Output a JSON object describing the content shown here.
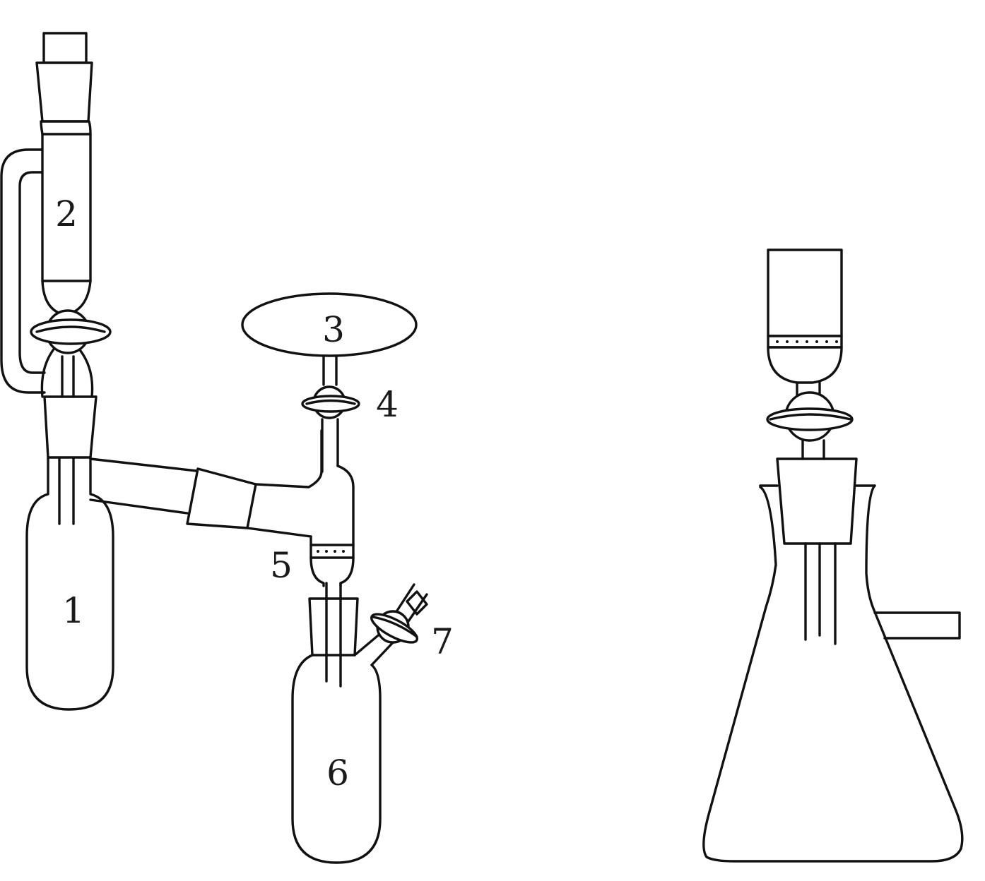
{
  "diagram": {
    "labels": {
      "flask_1": "1",
      "funnel_2": "2",
      "bulb_3": "3",
      "stopcock_4": "4",
      "filter_5": "5",
      "flask_6": "6",
      "stopcock_7": "7"
    }
  },
  "style": {
    "line_color": "#111111",
    "background": "#ffffff"
  }
}
